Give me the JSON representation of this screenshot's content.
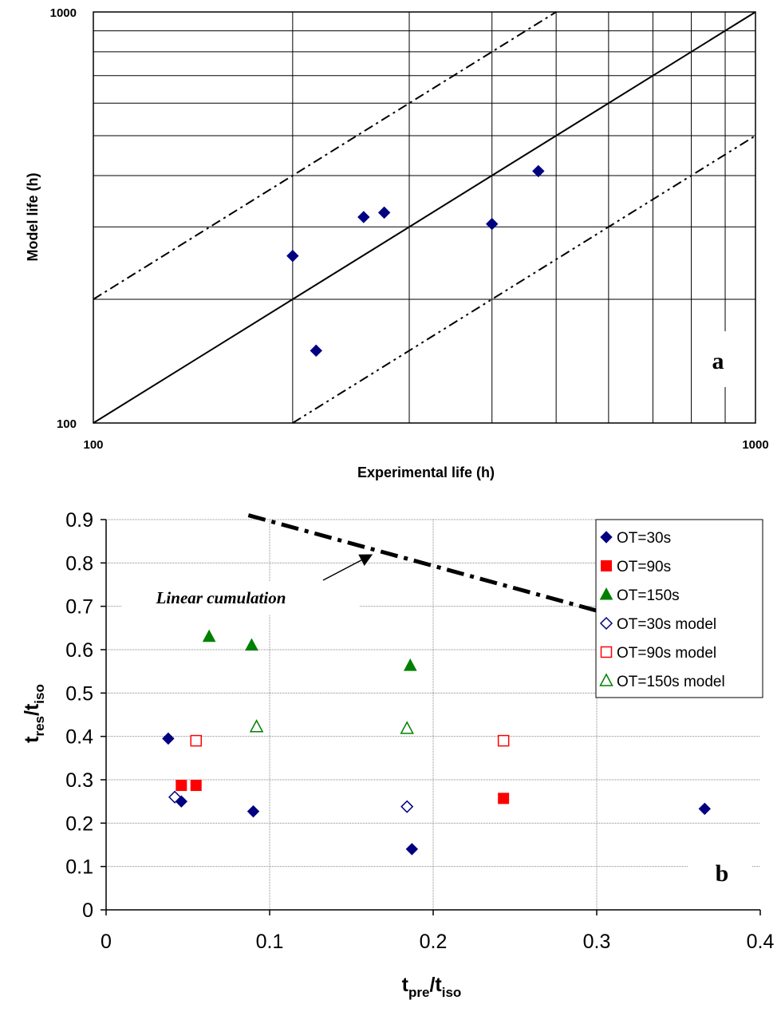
{
  "chart_data": [
    {
      "id": "a",
      "type": "scatter",
      "panel_label": "a",
      "xlabel": "Experimental life (h)",
      "ylabel": "Model life (h)",
      "x_scale": "log",
      "y_scale": "log",
      "xlim": [
        100,
        1000
      ],
      "ylim": [
        100,
        1000
      ],
      "x_tick_labels": [
        "100",
        "1000"
      ],
      "y_tick_labels": [
        "100",
        "1000"
      ],
      "grid": true,
      "reference_lines": [
        {
          "style": "solid",
          "factor": 1
        },
        {
          "style": "dash-dot",
          "factor": 2
        },
        {
          "style": "dash-dot-dot",
          "factor": 0.5
        }
      ],
      "series": [
        {
          "marker": "filled-diamond",
          "color": "#000080",
          "points": [
            {
              "x": 200,
              "y": 255
            },
            {
              "x": 217,
              "y": 150
            },
            {
              "x": 256,
              "y": 317
            },
            {
              "x": 275,
              "y": 325
            },
            {
              "x": 400,
              "y": 305
            },
            {
              "x": 470,
              "y": 410
            }
          ]
        }
      ]
    },
    {
      "id": "b",
      "type": "scatter",
      "panel_label": "b",
      "xlabel": {
        "main": "t",
        "sub1": "pre",
        "sep": "/t",
        "sub2": "iso"
      },
      "ylabel": {
        "main": "t",
        "sub1": "res",
        "sep": "/t",
        "sub2": "iso"
      },
      "xlim": [
        0,
        0.4
      ],
      "ylim": [
        0,
        0.9
      ],
      "x_ticks": [
        0,
        0.1,
        0.2,
        0.3,
        0.4
      ],
      "x_tick_labels": [
        "0",
        "0.1",
        "0.2",
        "0.3",
        "0.4"
      ],
      "y_ticks": [
        0,
        0.1,
        0.2,
        0.3,
        0.4,
        0.5,
        0.6,
        0.7,
        0.8,
        0.9
      ],
      "y_tick_labels": [
        "0",
        "0.1",
        "0.2",
        "0.3",
        "0.4",
        "0.5",
        "0.6",
        "0.7",
        "0.8",
        "0.9"
      ],
      "grid": true,
      "legend_position": "top-right",
      "annotation": {
        "text": "Linear cumulation",
        "arrow_to": [
          0.163,
          0.82
        ]
      },
      "linear_cumulation_line": [
        [
          0.087,
          0.91
        ],
        [
          0.3,
          0.69
        ]
      ],
      "series": [
        {
          "name": "OT=30s",
          "marker": "filled-diamond",
          "color": "#000080",
          "points": [
            [
              0.038,
              0.395
            ],
            [
              0.046,
              0.25
            ],
            [
              0.09,
              0.227
            ],
            [
              0.187,
              0.14
            ],
            [
              0.366,
              0.233
            ]
          ]
        },
        {
          "name": "OT=90s",
          "marker": "filled-square",
          "color": "#ff0000",
          "points": [
            [
              0.046,
              0.287
            ],
            [
              0.055,
              0.287
            ],
            [
              0.243,
              0.257
            ]
          ]
        },
        {
          "name": "OT=150s",
          "marker": "filled-triangle",
          "color": "#008000",
          "points": [
            [
              0.063,
              0.63
            ],
            [
              0.089,
              0.61
            ],
            [
              0.186,
              0.563
            ]
          ]
        },
        {
          "name": "OT=30s model",
          "marker": "open-diamond",
          "color": "#000080",
          "points": [
            [
              0.042,
              0.26
            ],
            [
              0.184,
              0.238
            ]
          ]
        },
        {
          "name": "OT=90s model",
          "marker": "open-square",
          "color": "#ff0000",
          "points": [
            [
              0.055,
              0.39
            ],
            [
              0.243,
              0.39
            ]
          ]
        },
        {
          "name": "OT=150s model",
          "marker": "open-triangle",
          "color": "#008000",
          "points": [
            [
              0.092,
              0.422
            ],
            [
              0.184,
              0.418
            ]
          ]
        }
      ]
    }
  ]
}
